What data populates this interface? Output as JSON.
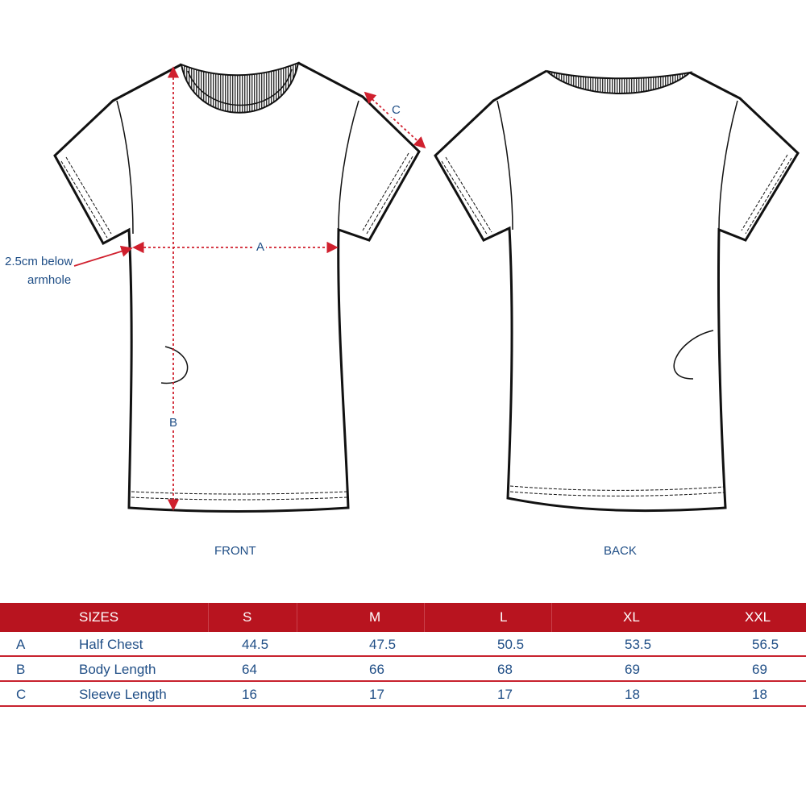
{
  "labels": {
    "front": "FRONT",
    "back": "BACK",
    "a": "A",
    "b": "B",
    "c": "C",
    "note_line1": "2.5cm below",
    "note_line2": "armhole"
  },
  "colors": {
    "accent": "#b8141f",
    "text": "#1f4e86",
    "measure": "#d0202e"
  },
  "table": {
    "header": [
      "SIZES",
      "S",
      "M",
      "L",
      "XL",
      "XXL"
    ],
    "rows": [
      {
        "key": "A",
        "name": "Half Chest",
        "values": [
          "44.5",
          "47.5",
          "50.5",
          "53.5",
          "56.5"
        ]
      },
      {
        "key": "B",
        "name": "Body Length",
        "values": [
          "64",
          "66",
          "68",
          "69",
          "69"
        ]
      },
      {
        "key": "C",
        "name": "Sleeve Length",
        "values": [
          "16",
          "17",
          "17",
          "18",
          "18"
        ]
      }
    ]
  }
}
